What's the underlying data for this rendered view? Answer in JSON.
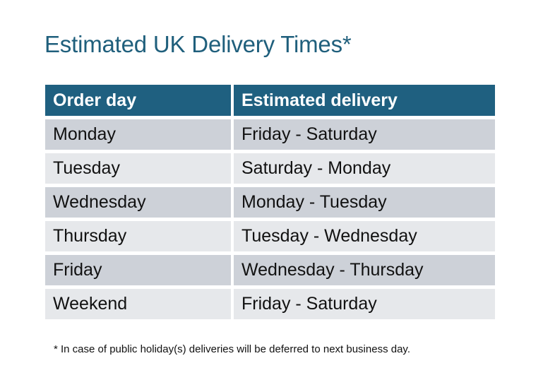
{
  "title": "Estimated UK Delivery Times*",
  "table": {
    "headers": [
      "Order day",
      "Estimated delivery"
    ],
    "rows": [
      [
        "Monday",
        "Friday - Saturday"
      ],
      [
        "Tuesday",
        "Saturday - Monday"
      ],
      [
        "Wednesday",
        "Monday - Tuesday"
      ],
      [
        "Thursday",
        "Tuesday - Wednesday"
      ],
      [
        "Friday",
        "Wednesday - Thursday"
      ],
      [
        "Weekend",
        "Friday - Saturday"
      ]
    ]
  },
  "footnote": "* In case of public holiday(s) deliveries will be deferred to next business day.",
  "colors": {
    "title": "#1f5f7c",
    "header_bg": "#1f6080",
    "row_odd": "#cdd1d8",
    "row_even": "#e6e8eb"
  }
}
